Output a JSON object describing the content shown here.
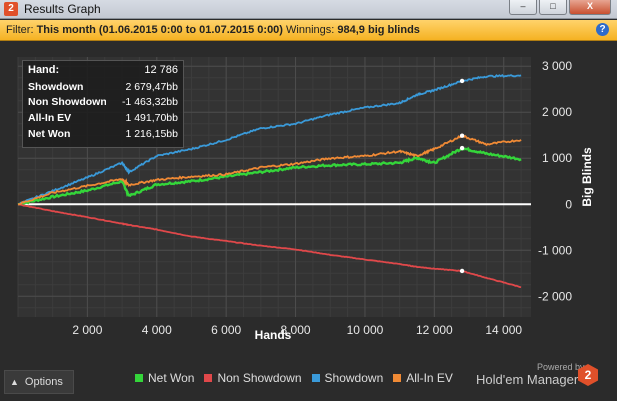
{
  "window": {
    "title": "Results Graph",
    "app_icon": "2",
    "min_label": "–",
    "max_label": "□",
    "close_label": "X"
  },
  "filter": {
    "label": "Filter:",
    "period": "This month (01.06.2015 0:00 to 01.07.2015 0:00)",
    "winnings_label": "Winnings:",
    "winnings_value": "984,9 big blinds",
    "help": "?"
  },
  "stats": [
    {
      "label": "Hand:",
      "value": "12 786"
    },
    {
      "label": "Showdown",
      "value": "2 679,47bb"
    },
    {
      "label": "Non Showdown",
      "value": "-1 463,32bb"
    },
    {
      "label": "All-In EV",
      "value": "1 491,70bb"
    },
    {
      "label": "Net Won",
      "value": "1 216,15bb"
    }
  ],
  "options_label": "Options",
  "powered_by": "Powered by",
  "brand": "Hold'em Manager",
  "brand_logo": "2",
  "colors": {
    "net_won": "#34d53a",
    "non_showdown": "#e0484a",
    "showdown": "#3a9ad9",
    "all_in_ev": "#f08a35",
    "background": "#2b2b2b",
    "grid": "#4a4a4a"
  },
  "chart_data": {
    "type": "line",
    "xlabel": "Hands",
    "ylabel": "Big Blinds",
    "xlim": [
      0,
      14786
    ],
    "ylim": [
      -2450,
      3200
    ],
    "x_ticks": [
      2000,
      4000,
      6000,
      8000,
      10000,
      12000,
      14000
    ],
    "x_tick_labels": [
      "2 000",
      "4 000",
      "6 000",
      "8 000",
      "10 000",
      "12 000",
      "14 000"
    ],
    "y_ticks": [
      3000,
      2000,
      1000,
      0,
      -1000,
      -2000
    ],
    "y_tick_labels": [
      "3 000",
      "2 000",
      "1 000",
      "0",
      "-1 000",
      "-2 000"
    ],
    "grid": true,
    "legend_position": "bottom",
    "x": [
      0,
      1000,
      2000,
      3000,
      3200,
      4000,
      5000,
      6000,
      7000,
      8000,
      9000,
      10000,
      11000,
      11500,
      12000,
      12800,
      13500,
      14500
    ],
    "series": [
      {
        "name": "Net Won",
        "color": "#34d53a",
        "values": [
          0,
          160,
          300,
          500,
          180,
          430,
          500,
          600,
          700,
          800,
          850,
          870,
          900,
          1010,
          900,
          1220,
          1100,
          980
        ]
      },
      {
        "name": "Non Showdown",
        "color": "#e0484a",
        "values": [
          0,
          -150,
          -280,
          -420,
          -450,
          -550,
          -700,
          -800,
          -900,
          -980,
          -1100,
          -1200,
          -1300,
          -1360,
          -1400,
          -1450,
          -1600,
          -1800
        ]
      },
      {
        "name": "Showdown",
        "color": "#3a9ad9",
        "values": [
          0,
          290,
          580,
          900,
          700,
          1050,
          1200,
          1400,
          1650,
          1750,
          1950,
          2100,
          2200,
          2380,
          2480,
          2680,
          2780,
          2800
        ]
      },
      {
        "name": "All-In EV",
        "color": "#f08a35",
        "values": [
          0,
          250,
          400,
          550,
          420,
          530,
          600,
          650,
          800,
          880,
          1000,
          1050,
          1150,
          1050,
          1200,
          1490,
          1300,
          1400
        ]
      }
    ],
    "markers": [
      {
        "series": "Showdown",
        "x": 12800,
        "y": 2680
      },
      {
        "series": "All-In EV",
        "x": 12800,
        "y": 1490
      },
      {
        "series": "Net Won",
        "x": 12800,
        "y": 1220
      },
      {
        "series": "Non Showdown",
        "x": 12800,
        "y": -1450
      }
    ]
  }
}
